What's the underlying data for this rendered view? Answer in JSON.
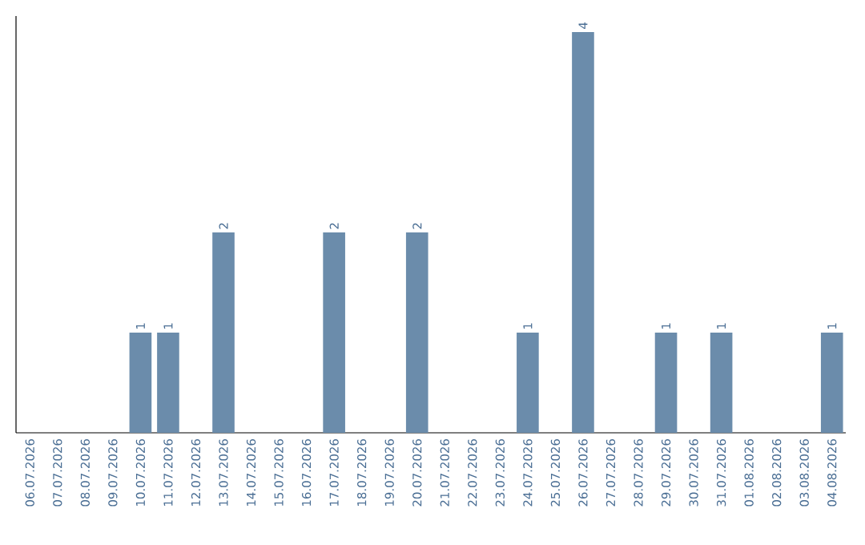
{
  "chart_data": {
    "type": "bar",
    "color": "#6b8cab",
    "categories": [
      "06.07.2026",
      "07.07.2026",
      "08.07.2026",
      "09.07.2026",
      "10.07.2026",
      "11.07.2026",
      "12.07.2026",
      "13.07.2026",
      "14.07.2026",
      "15.07.2026",
      "16.07.2026",
      "17.07.2026",
      "18.07.2026",
      "19.07.2026",
      "20.07.2026",
      "21.07.2026",
      "22.07.2026",
      "23.07.2026",
      "24.07.2026",
      "25.07.2026",
      "26.07.2026",
      "27.07.2026",
      "28.07.2026",
      "29.07.2026",
      "30.07.2026",
      "31.07.2026",
      "01.08.2026",
      "02.08.2026",
      "03.08.2026",
      "04.08.2026"
    ],
    "values": [
      0,
      0,
      0,
      0,
      1,
      1,
      0,
      2,
      0,
      0,
      0,
      2,
      0,
      0,
      2,
      0,
      0,
      0,
      1,
      0,
      4,
      0,
      0,
      1,
      0,
      1,
      0,
      0,
      0,
      1
    ],
    "value_labels": [
      null,
      null,
      null,
      null,
      "1",
      "1",
      null,
      "2",
      null,
      null,
      null,
      "2",
      null,
      null,
      "2",
      null,
      null,
      null,
      "1",
      null,
      "4",
      null,
      null,
      "1",
      null,
      "1",
      null,
      null,
      null,
      "1"
    ],
    "grid": false
  }
}
